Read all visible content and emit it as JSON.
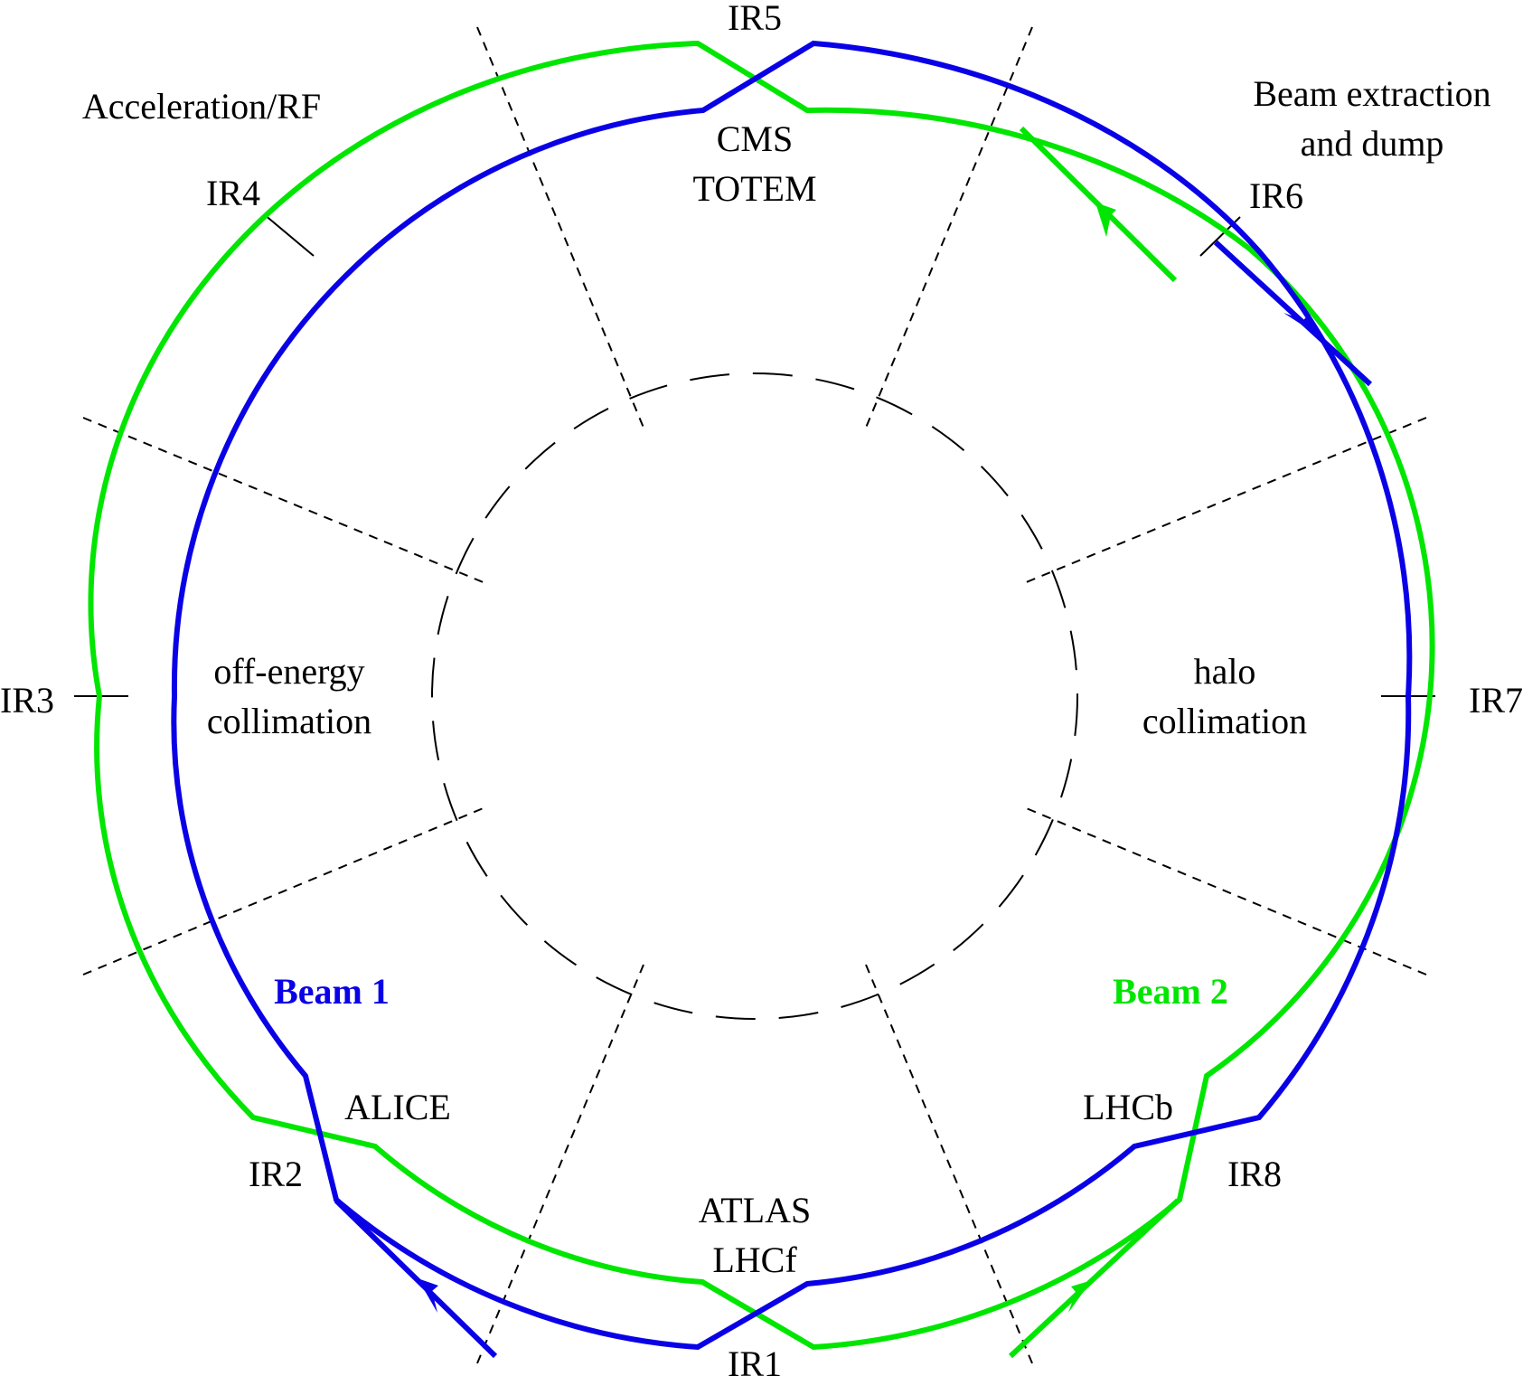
{
  "colors": {
    "beam1": "#0a00e6",
    "beam2": "#00e600",
    "ink": "#000000"
  },
  "labels": {
    "ir1": "IR1",
    "ir2": "IR2",
    "ir3": "IR3",
    "ir4": "IR4",
    "ir5": "IR5",
    "ir6": "IR6",
    "ir7": "IR7",
    "ir8": "IR8",
    "acceleration": "Acceleration/RF",
    "extraction_line1": "Beam extraction",
    "extraction_line2": "and dump",
    "cms": "CMS",
    "totem": "TOTEM",
    "offenergy_line1": "off-energy",
    "offenergy_line2": "collimation",
    "halo_line1": "halo",
    "halo_line2": "collimation",
    "alice": "ALICE",
    "lhcb": "LHCb",
    "atlas": "ATLAS",
    "lhcf": "LHCf",
    "beam1": "Beam 1",
    "beam2": "Beam 2"
  }
}
